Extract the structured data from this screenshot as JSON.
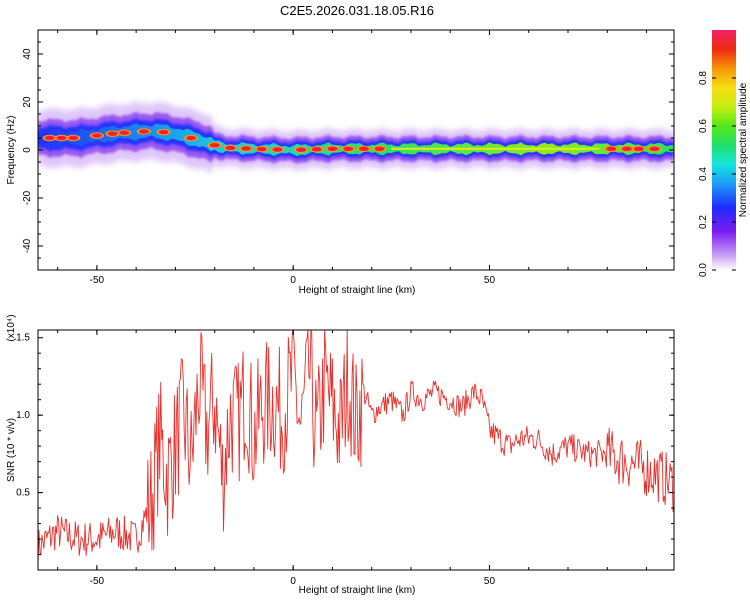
{
  "title": "C2E5.2026.031.18.05.R16",
  "chart_data": [
    {
      "type": "heatmap",
      "xlabel": "Height of straight line (km)",
      "ylabel": "Frequency (Hz)",
      "xlim": [
        -65,
        97
      ],
      "ylim": [
        -50,
        50
      ],
      "xticks": [
        -50,
        0,
        50
      ],
      "yticks": [
        -40,
        -20,
        0,
        20,
        40
      ],
      "colorbar": {
        "label": "Normalized spectral amplitude",
        "range": [
          0,
          1
        ],
        "ticks": [
          "0.0",
          "0.2",
          "0.4",
          "0.6",
          "0.8"
        ]
      },
      "ridge": {
        "x": [
          -65,
          -55,
          -45,
          -35,
          -28,
          -22,
          -18,
          -10,
          0,
          10,
          20,
          30,
          40,
          50,
          60,
          70,
          80,
          90,
          97
        ],
        "frequency": [
          5,
          5,
          7,
          8,
          6,
          3,
          1,
          0.5,
          0,
          0.5,
          0.5,
          0.5,
          0.5,
          0.5,
          0.5,
          0.5,
          0.5,
          0.5,
          0.5
        ]
      }
    },
    {
      "type": "line",
      "xlabel": "Height of straight line (km)",
      "ylabel": "SNR (10 * v/v)",
      "y_multiplier": "(x10⁴)",
      "xlim": [
        -65,
        97
      ],
      "ylim": [
        0,
        1.55
      ],
      "xticks": [
        -50,
        0,
        50
      ],
      "yticks": [
        0.5,
        1.0,
        1.5
      ],
      "color": "#e8312d",
      "series": [
        {
          "x": [
            -65,
            -60,
            -55,
            -50,
            -45,
            -40,
            -36,
            -34,
            -32,
            -30,
            -28,
            -26,
            -24,
            -22,
            -20,
            -18,
            -16,
            -14,
            -12,
            -10,
            -8,
            -5,
            -3,
            0,
            2,
            4,
            6,
            8,
            10,
            12,
            14,
            16,
            18,
            20,
            22,
            25,
            28,
            30,
            33,
            36,
            40,
            43,
            46,
            48,
            50,
            55,
            58,
            62,
            66,
            70,
            75,
            80,
            85,
            90,
            94,
            97
          ],
          "y": [
            0.15,
            0.25,
            0.2,
            0.2,
            0.25,
            0.2,
            0.45,
            0.85,
            0.6,
            0.8,
            1.0,
            0.7,
            1.2,
            0.9,
            1.1,
            0.6,
            1.0,
            0.95,
            1.15,
            0.85,
            1.05,
            1.1,
            1.0,
            1.25,
            0.9,
            1.3,
            0.85,
            1.2,
            1.05,
            0.9,
            1.25,
            0.95,
            1.15,
            1.0,
            1.05,
            1.1,
            1.0,
            1.15,
            1.1,
            1.15,
            1.1,
            1.05,
            1.15,
            1.1,
            0.9,
            0.8,
            0.85,
            0.85,
            0.75,
            0.8,
            0.75,
            0.75,
            0.7,
            0.65,
            0.6,
            0.55
          ]
        }
      ]
    }
  ]
}
